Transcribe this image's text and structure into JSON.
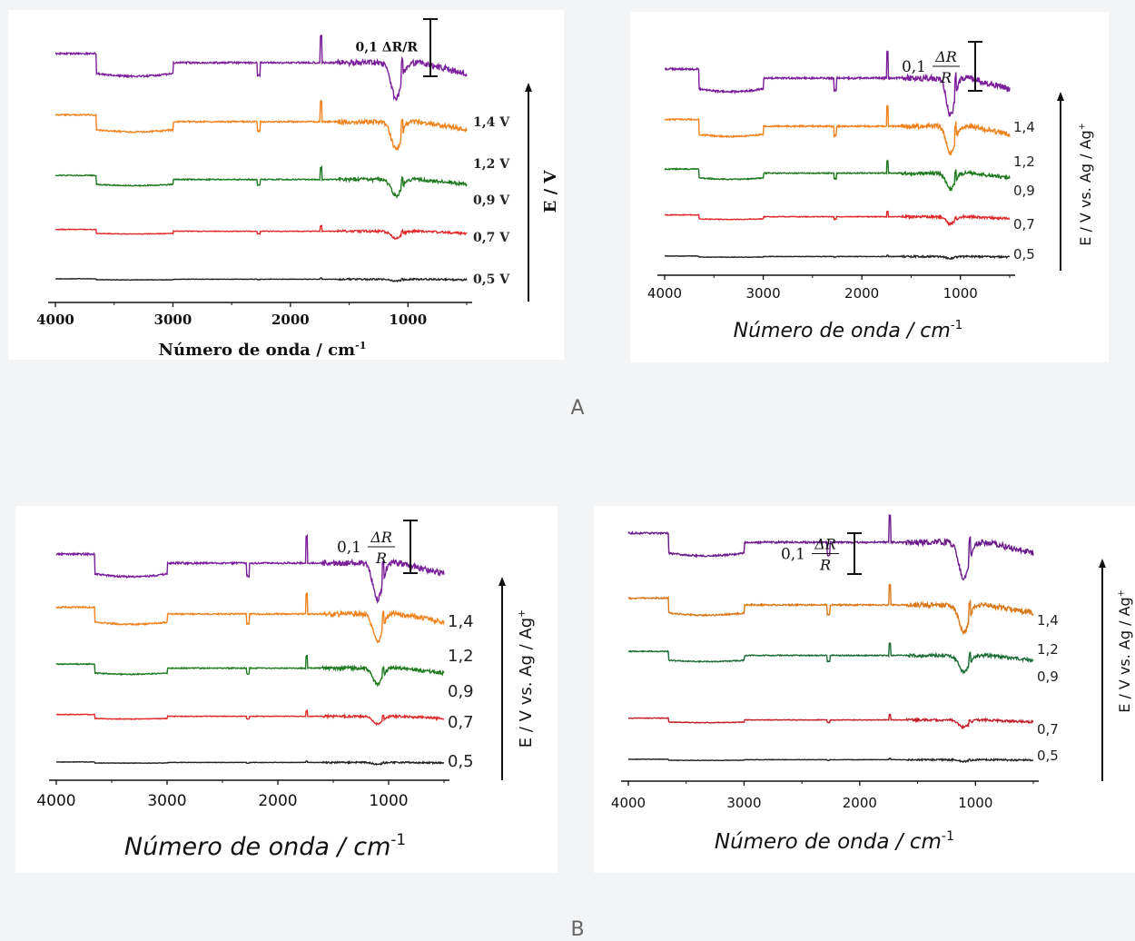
{
  "captions": {
    "a": "A",
    "b": "B"
  },
  "chart_data": [
    {
      "type": "line",
      "panel": "A-left",
      "xlabel": "Número de onda / cm",
      "xlabel_sup": "-1",
      "ylabel": "E / V",
      "scalebar": {
        "prefix": "0,1",
        "label": "ΔR/R"
      },
      "xlim": [
        4000,
        500
      ],
      "xticks": [
        4000,
        3000,
        2000,
        1000
      ],
      "series": [
        {
          "name": "1,4 V",
          "color": "#7b1e9a",
          "offset": 5
        },
        {
          "name": "1,2 V",
          "color": "#f0821e",
          "offset": 4
        },
        {
          "name": "0,9 V",
          "color": "#1f7a1f",
          "offset": 3
        },
        {
          "name": "0,7 V",
          "color": "#e02a2a",
          "offset": 2
        },
        {
          "name": "0,5 V",
          "color": "#222222",
          "offset": 1
        }
      ]
    },
    {
      "type": "line",
      "panel": "A-right",
      "xlabel": "Número de onda / cm",
      "xlabel_sup": "-1",
      "ylabel": "E / V vs. Ag / Ag",
      "ylabel_sup": "+",
      "scalebar": {
        "prefix": "0,1",
        "num": "ΔR",
        "den": "R"
      },
      "xlim": [
        4000,
        500
      ],
      "xticks": [
        4000,
        3000,
        2000,
        1000
      ],
      "series": [
        {
          "name": "1,4",
          "color": "#7b1e9a",
          "offset": 5
        },
        {
          "name": "1,2",
          "color": "#f0821e",
          "offset": 4
        },
        {
          "name": "0,9",
          "color": "#1f7a1f",
          "offset": 3
        },
        {
          "name": "0,7",
          "color": "#e02a2a",
          "offset": 2
        },
        {
          "name": "0,5",
          "color": "#222222",
          "offset": 1
        }
      ]
    },
    {
      "type": "line",
      "panel": "B-left",
      "xlabel": "Número de onda / cm",
      "xlabel_sup": "-1",
      "ylabel": "E / V vs. Ag / Ag",
      "ylabel_sup": "+",
      "scalebar": {
        "prefix": "0,1",
        "num": "ΔR",
        "den": "R"
      },
      "xlim": [
        4000,
        500
      ],
      "xticks": [
        4000,
        3000,
        2000,
        1000
      ],
      "series": [
        {
          "name": "1,4",
          "color": "#7b1e9a",
          "offset": 5
        },
        {
          "name": "1,2",
          "color": "#f0821e",
          "offset": 4
        },
        {
          "name": "0,9",
          "color": "#1f7a1f",
          "offset": 3
        },
        {
          "name": "0,7",
          "color": "#e02a2a",
          "offset": 2
        },
        {
          "name": "0,5",
          "color": "#222222",
          "offset": 1
        }
      ]
    },
    {
      "type": "line",
      "panel": "B-right",
      "xlabel": "Número de onda / cm",
      "xlabel_sup": "-1",
      "ylabel": "E / V vs. Ag / Ag",
      "ylabel_sup": "+",
      "scalebar": {
        "prefix": "0,1",
        "num": "ΔR",
        "den": "R"
      },
      "xlim": [
        4000,
        500
      ],
      "xticks": [
        4000,
        3000,
        2000,
        1000
      ],
      "series": [
        {
          "name": "1,4",
          "color": "#6a1a8a",
          "offset": 5
        },
        {
          "name": "1,2",
          "color": "#d9781a",
          "offset": 4
        },
        {
          "name": "0,9",
          "color": "#1a6b35",
          "offset": 3
        },
        {
          "name": "0,7",
          "color": "#c21f2a",
          "offset": 2
        },
        {
          "name": "0,5",
          "color": "#222222",
          "offset": 1
        }
      ]
    }
  ]
}
